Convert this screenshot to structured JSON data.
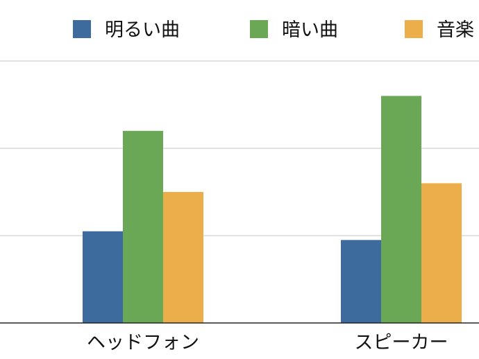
{
  "chart_data": {
    "type": "bar",
    "categories": [
      "ヘッドフォン",
      "スピーカー"
    ],
    "series": [
      {
        "name": "明るい曲",
        "values": [
          1.05,
          0.95
        ],
        "color": "#3d6b9e"
      },
      {
        "name": "暗い曲",
        "values": [
          2.2,
          2.6
        ],
        "color": "#6aa855"
      },
      {
        "name": "音楽",
        "values": [
          1.5,
          1.6
        ],
        "color": "#ecae4a"
      }
    ],
    "ylim": [
      0,
      3
    ],
    "grid": true,
    "legend_position": "top"
  }
}
